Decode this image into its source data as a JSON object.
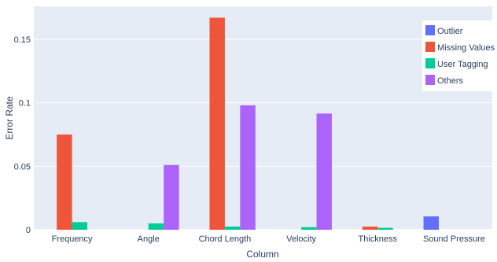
{
  "chart_data": {
    "type": "bar",
    "title": "",
    "xlabel": "Column",
    "ylabel": "Error Rate",
    "categories": [
      "Frequency",
      "Angle",
      "Chord Length",
      "Velocity",
      "Thickness",
      "Sound Pressure"
    ],
    "series": [
      {
        "name": "Outlier",
        "color": "#636efa",
        "values": [
          0,
          0,
          0,
          0,
          0,
          0.0105
        ]
      },
      {
        "name": "Missing Values",
        "color": "#ef553b",
        "values": [
          0.075,
          0,
          0.167,
          0,
          0.0025,
          0
        ]
      },
      {
        "name": "User Tagging",
        "color": "#00cc96",
        "values": [
          0.006,
          0.005,
          0.0025,
          0.002,
          0.0015,
          0
        ]
      },
      {
        "name": "Others",
        "color": "#ab63fa",
        "values": [
          0,
          0.051,
          0.098,
          0.0915,
          0,
          0
        ]
      }
    ],
    "yticks": [
      0,
      0.05,
      0.1,
      0.15
    ],
    "ytick_labels": [
      "0",
      "0.05",
      "0.1",
      "0.15"
    ],
    "ylim": [
      0,
      0.176
    ],
    "grid": true,
    "legend_position": "top-right",
    "plot_background": "#e5ecf6",
    "grid_color": "#ffffff"
  }
}
